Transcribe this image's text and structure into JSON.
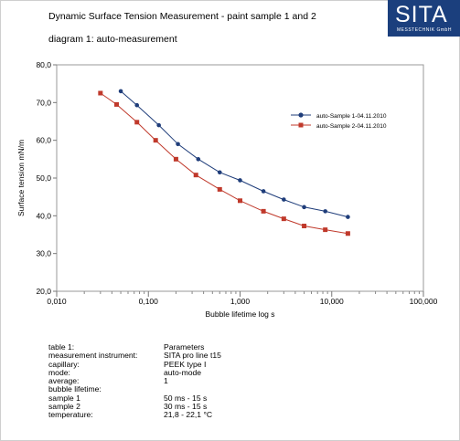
{
  "header": {
    "title": "Dynamic Surface Tension Measurement - paint sample 1 and 2",
    "subtitle": "diagram 1: auto-measurement",
    "logo_text": "SITA",
    "logo_subtext": "MESSTECHNIK GmbH"
  },
  "colors": {
    "series1": "#1f3d7a",
    "series2": "#c0392b",
    "logo_bg": "#1b3f7d"
  },
  "chart_data": {
    "type": "line",
    "xlabel": "Bubble lifetime log     s",
    "ylabel": "Surface tension     mN/m",
    "xscale": "log",
    "xlim": [
      0.01,
      100
    ],
    "ylim": [
      20,
      80
    ],
    "x_ticks": [
      "0,010",
      "0,100",
      "1,000",
      "10,000",
      "100,000"
    ],
    "y_ticks": [
      "20,0",
      "30,0",
      "40,0",
      "50,0",
      "60,0",
      "70,0",
      "80,0"
    ],
    "grid": false,
    "legend_position": "top-right",
    "series": [
      {
        "name": "auto-Sample 1-04.11.2010",
        "marker": "circle",
        "x": [
          0.05,
          0.075,
          0.13,
          0.21,
          0.35,
          0.6,
          1.0,
          1.8,
          3.0,
          5.0,
          8.5,
          15
        ],
        "y": [
          73,
          69.3,
          64,
          59,
          55,
          51.5,
          49.4,
          46.5,
          44.3,
          42.3,
          41.2,
          39.7
        ]
      },
      {
        "name": "auto-Sample 2-04.11.2010",
        "marker": "square",
        "x": [
          0.03,
          0.045,
          0.075,
          0.12,
          0.2,
          0.33,
          0.6,
          1.0,
          1.8,
          3.0,
          5.0,
          8.5,
          15
        ],
        "y": [
          72.5,
          69.5,
          64.8,
          60,
          55,
          50.8,
          47,
          44,
          41.2,
          39.2,
          37.3,
          36.3,
          35.3
        ]
      }
    ]
  },
  "params": [
    {
      "key": "table 1:",
      "value": "Parameters"
    },
    {
      "key": "measurement instrument:",
      "value": "SITA pro line t15"
    },
    {
      "key": "capillary:",
      "value": "PEEK type I"
    },
    {
      "key": "mode:",
      "value": "auto-mode"
    },
    {
      "key": "average:",
      "value": "1"
    },
    {
      "key": "bubble lifetime:",
      "value": ""
    },
    {
      "key": "sample 1",
      "value": "50 ms - 15 s"
    },
    {
      "key": "sample 2",
      "value": "30 ms - 15 s"
    },
    {
      "key": "temperature:",
      "value": "21,8 - 22,1 °C"
    }
  ]
}
